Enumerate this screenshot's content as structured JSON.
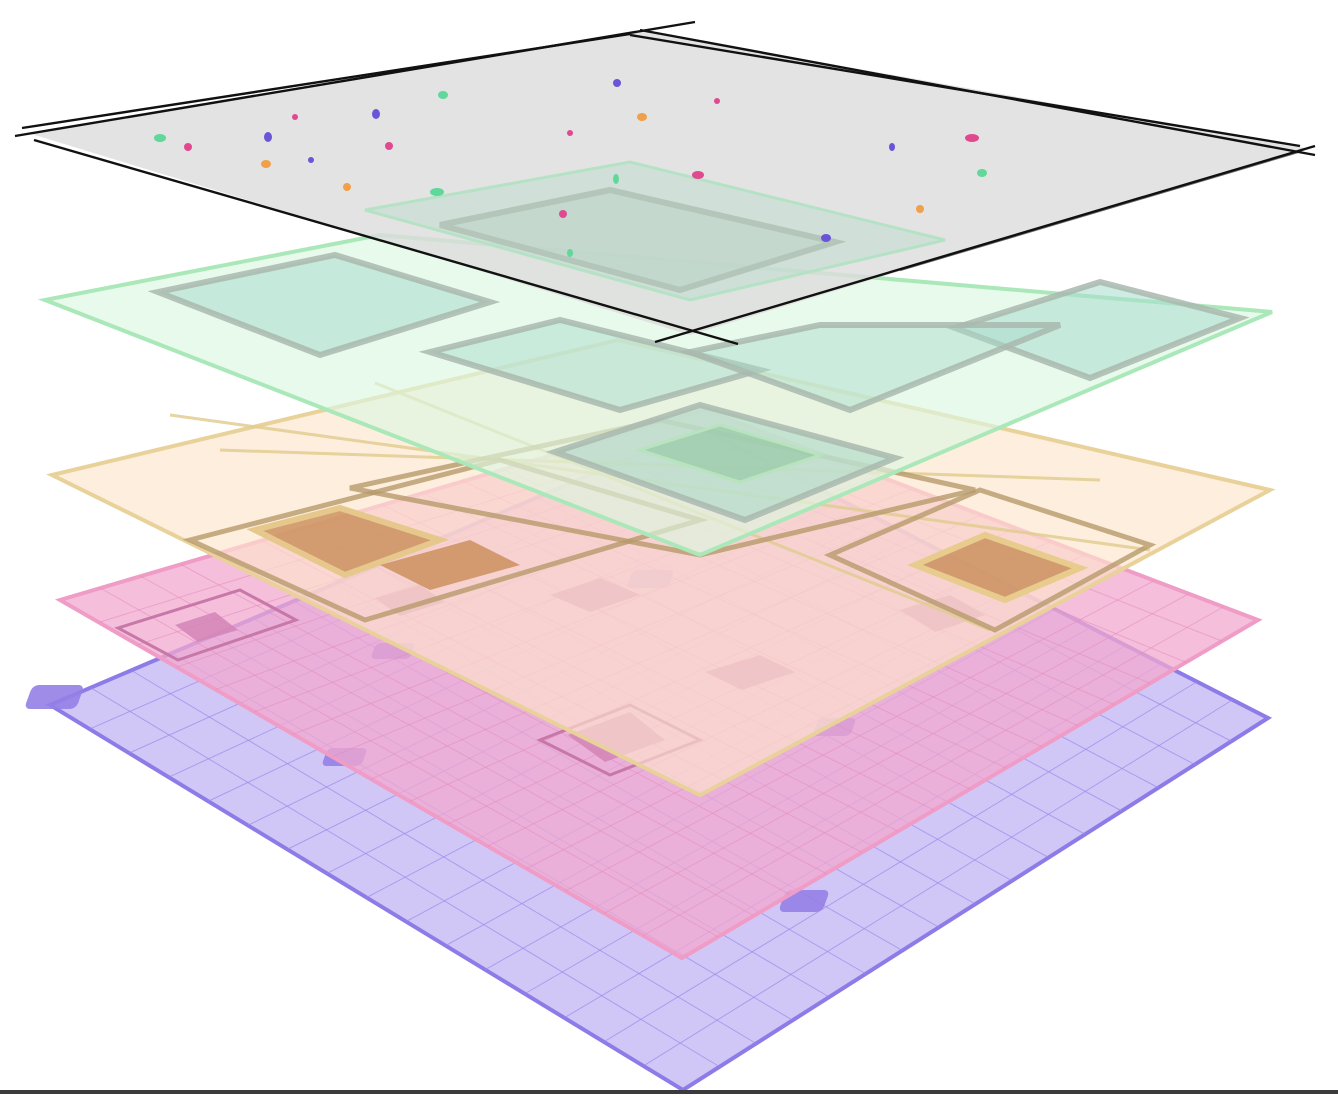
{
  "layers": [
    {
      "id": "purple-base-layer",
      "fill": "#b8a8f2",
      "stroke": "#8a78e6",
      "fill_opacity": 0.6
    },
    {
      "id": "pink-layer",
      "fill": "#f2a0c8",
      "stroke": "#e890bd",
      "fill_opacity": 0.55
    },
    {
      "id": "orange-layer",
      "fill": "#fde6c9",
      "stroke": "#e7cf93",
      "fill_opacity": 0.55,
      "block_fill": "#c88a55"
    },
    {
      "id": "green-layer",
      "fill": "#d8f5dc",
      "stroke": "#a4e6b4",
      "fill_opacity": 0.55,
      "block_fill": "#9fd8c6"
    },
    {
      "id": "gray-top-layer",
      "fill": "#d9d9d9",
      "stroke": "#111111",
      "fill_opacity": 0.75
    }
  ],
  "dot_colors": [
    "#6a55d8",
    "#e0498f",
    "#f0a04a",
    "#5fd89a"
  ]
}
